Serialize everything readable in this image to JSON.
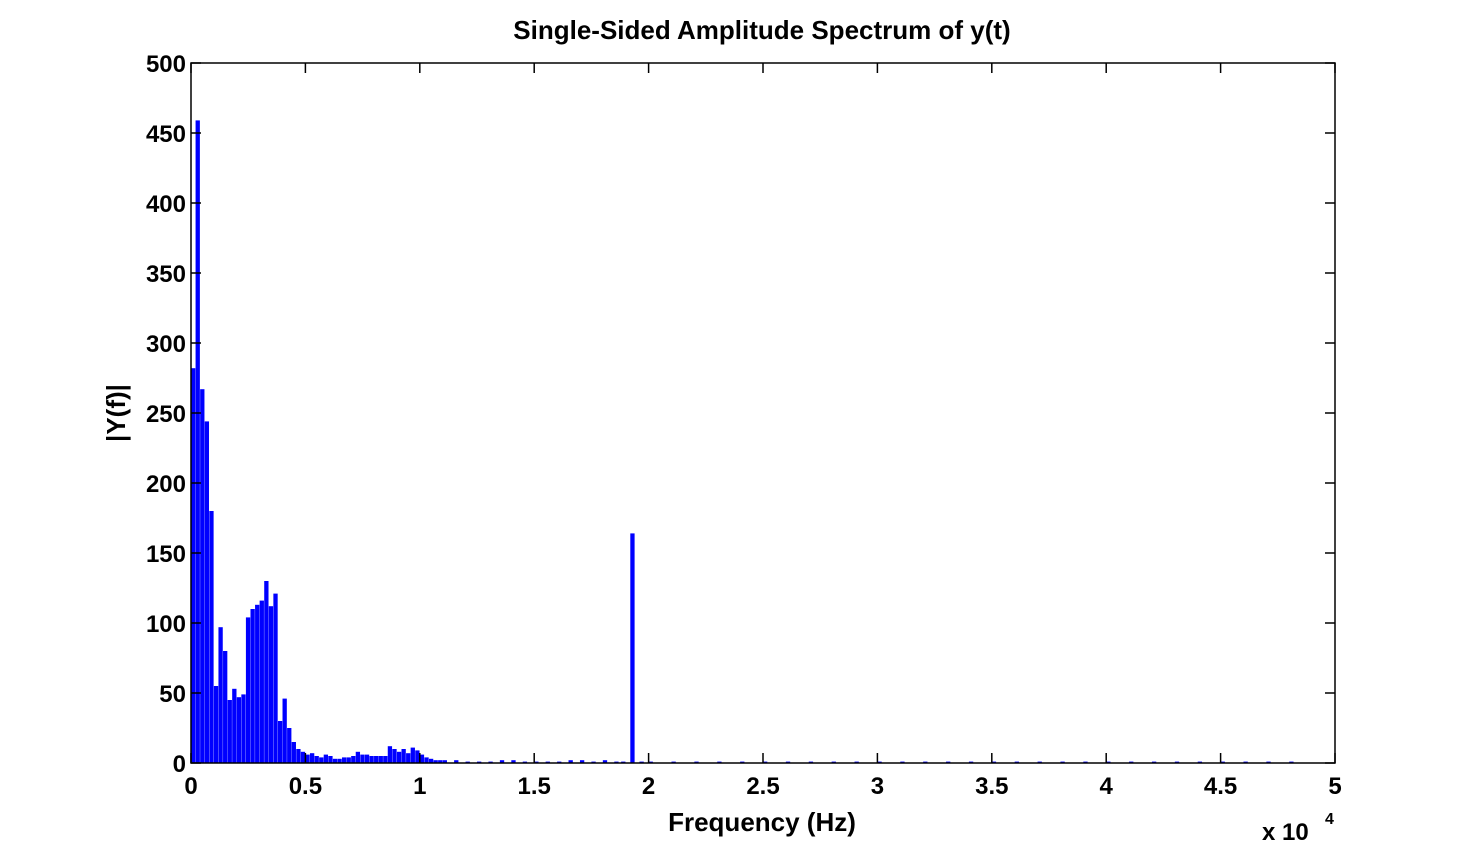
{
  "chart_data": {
    "type": "bar",
    "title": "Single-Sided Amplitude Spectrum of y(t)",
    "xlabel": "Frequency (Hz)",
    "ylabel": "|Y(f)|",
    "x_multiplier_prefix": "x 10",
    "x_multiplier_exponent": "4",
    "xlim": [
      0,
      5
    ],
    "ylim": [
      0,
      500
    ],
    "grid": false,
    "legend": "none",
    "bar_color": "#0000ff",
    "x_ticks": [
      0,
      0.5,
      1,
      1.5,
      2,
      2.5,
      3,
      3.5,
      4,
      4.5,
      5
    ],
    "x_tick_labels": [
      "0",
      "0.5",
      "1",
      "1.5",
      "2",
      "2.5",
      "3",
      "3.5",
      "4",
      "4.5",
      "5"
    ],
    "y_ticks": [
      0,
      50,
      100,
      150,
      200,
      250,
      300,
      350,
      400,
      450,
      500
    ],
    "y_tick_labels": [
      "0",
      "50",
      "100",
      "150",
      "200",
      "250",
      "300",
      "350",
      "400",
      "450",
      "500"
    ],
    "bar_width": 0.0188,
    "x": [
      0.0,
      0.02,
      0.04,
      0.06,
      0.08,
      0.1,
      0.12,
      0.14,
      0.16,
      0.18,
      0.2,
      0.22,
      0.24,
      0.26,
      0.28,
      0.3,
      0.32,
      0.34,
      0.36,
      0.38,
      0.4,
      0.42,
      0.44,
      0.46,
      0.48,
      0.5,
      0.52,
      0.54,
      0.56,
      0.58,
      0.6,
      0.62,
      0.64,
      0.66,
      0.68,
      0.7,
      0.72,
      0.74,
      0.76,
      0.78,
      0.8,
      0.82,
      0.84,
      0.86,
      0.88,
      0.9,
      0.92,
      0.94,
      0.96,
      0.98,
      1.0,
      1.02,
      1.04,
      1.06,
      1.08,
      1.1,
      1.15,
      1.2,
      1.25,
      1.3,
      1.35,
      1.4,
      1.45,
      1.5,
      1.55,
      1.6,
      1.65,
      1.7,
      1.75,
      1.8,
      1.85,
      1.88,
      1.92,
      1.96,
      2.0,
      2.1,
      2.2,
      2.3,
      2.4,
      2.5,
      2.6,
      2.7,
      2.8,
      2.9,
      3.0,
      3.1,
      3.2,
      3.3,
      3.4,
      3.5,
      3.6,
      3.7,
      3.8,
      3.9,
      4.0,
      4.1,
      4.2,
      4.3,
      4.4,
      4.5,
      4.6,
      4.7,
      4.8
    ],
    "values": [
      282,
      459,
      267,
      244,
      180,
      55,
      97,
      80,
      45,
      53,
      47,
      49,
      104,
      110,
      113,
      116,
      130,
      112,
      121,
      30,
      46,
      25,
      15,
      10,
      8,
      6,
      7,
      5,
      4,
      6,
      5,
      3,
      3,
      4,
      4,
      5,
      8,
      6,
      6,
      5,
      5,
      5,
      5,
      12,
      10,
      8,
      10,
      7,
      11,
      9,
      6,
      4,
      3,
      2,
      2,
      2,
      2,
      1,
      1,
      1,
      2,
      2,
      1,
      1,
      1,
      1,
      2,
      2,
      1,
      2,
      1,
      1,
      164,
      1,
      1,
      1,
      1,
      1,
      1,
      1,
      1,
      1,
      1,
      1,
      1,
      1,
      1,
      1,
      1,
      1,
      1,
      1,
      1,
      1,
      1,
      1,
      1,
      1,
      1,
      1,
      1,
      1,
      1
    ]
  }
}
